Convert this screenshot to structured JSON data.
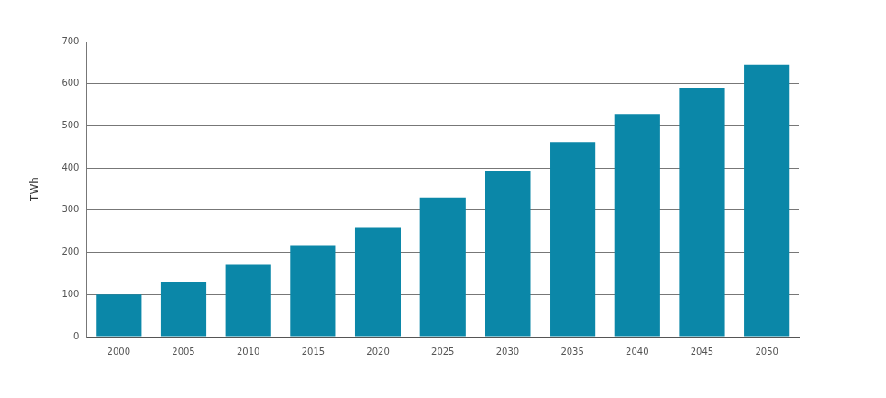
{
  "chart_data": {
    "type": "bar",
    "y_label": "TWh",
    "categories": [
      "2000",
      "2005",
      "2010",
      "2015",
      "2020",
      "2025",
      "2030",
      "2035",
      "2040",
      "2045",
      "2050"
    ],
    "values": [
      100,
      130,
      170,
      215,
      258,
      330,
      393,
      462,
      528,
      590,
      645
    ],
    "color": "#0b87a8",
    "ylim": [
      0,
      700
    ],
    "yticks": [
      0,
      100,
      200,
      300,
      400,
      500,
      600,
      700
    ],
    "grid": true
  }
}
